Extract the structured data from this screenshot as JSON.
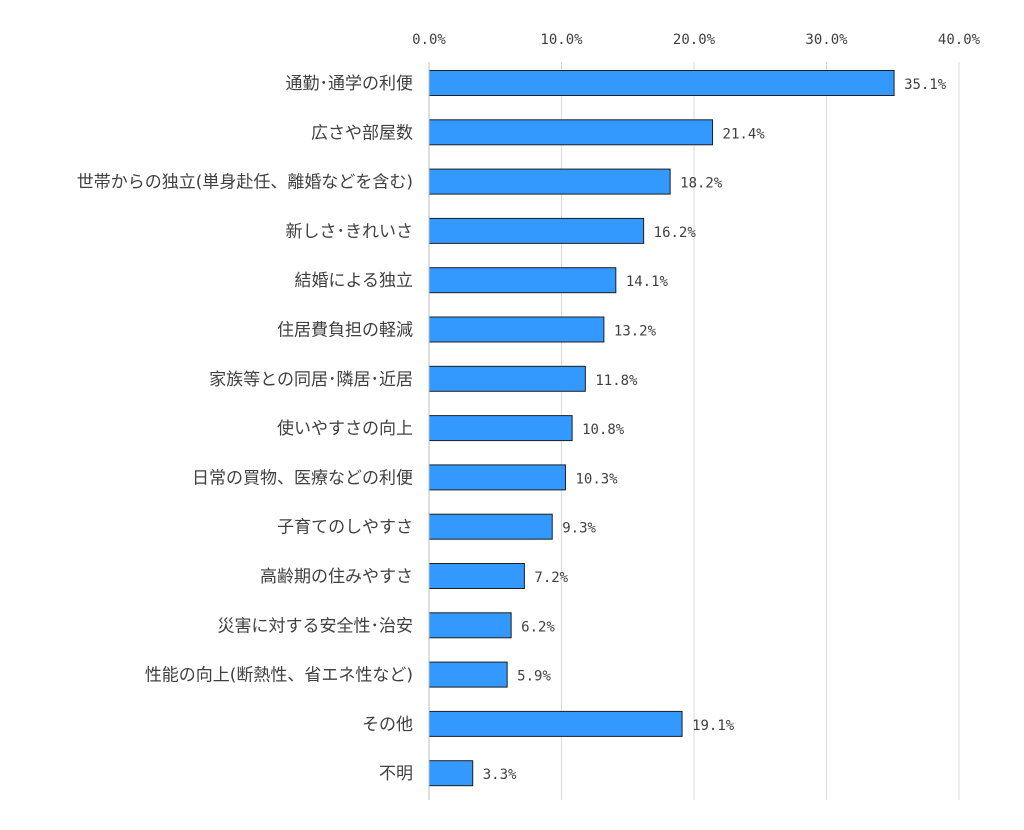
{
  "chart_data": {
    "type": "bar",
    "orientation": "horizontal",
    "categories": [
      "通勤･通学の利便",
      "広さや部屋数",
      "世帯からの独立(単身赴任、離婚などを含む)",
      "新しさ･きれいさ",
      "結婚による独立",
      "住居費負担の軽減",
      "家族等との同居･隣居･近居",
      "使いやすさの向上",
      "日常の買物、医療などの利便",
      "子育てのしやすさ",
      "高齢期の住みやすさ",
      "災害に対する安全性･治安",
      "性能の向上(断熱性、省エネ性など)",
      "その他",
      "不明"
    ],
    "values": [
      35.1,
      21.4,
      18.2,
      16.2,
      14.1,
      13.2,
      11.8,
      10.8,
      10.3,
      9.3,
      7.2,
      6.2,
      5.9,
      19.1,
      3.3
    ],
    "value_labels": [
      "35.1%",
      "21.4%",
      "18.2%",
      "16.2%",
      "14.1%",
      "13.2%",
      "11.8%",
      "10.8%",
      "10.3%",
      "9.3%",
      "7.2%",
      "6.2%",
      "5.9%",
      "19.1%",
      "3.3%"
    ],
    "xticks": [
      0,
      10,
      20,
      30,
      40
    ],
    "xtick_labels": [
      "0.0%",
      "10.0%",
      "20.0%",
      "30.0%",
      "40.0%"
    ],
    "xlim": [
      0,
      40
    ],
    "x_axis_position": "top",
    "grid": true,
    "bar_color": "#3399ff",
    "title": "",
    "xlabel": "",
    "ylabel": ""
  }
}
